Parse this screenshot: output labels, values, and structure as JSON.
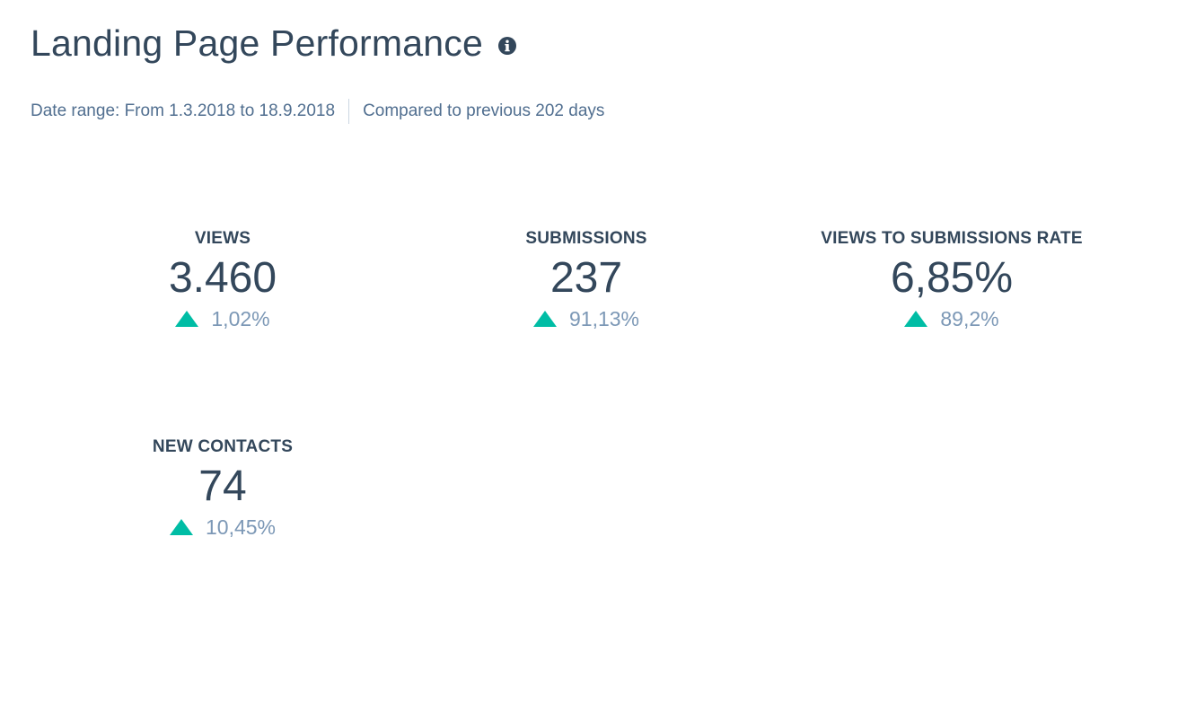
{
  "header": {
    "title": "Landing Page Performance",
    "info_icon": "info-circle-icon"
  },
  "date_range": {
    "range_text": "Date range: From 1.3.2018 to 18.9.2018",
    "comparison_text": "Compared to previous 202 days"
  },
  "colors": {
    "title": "#33475b",
    "subtext": "#516f90",
    "change_text": "#7c98b6",
    "positive_arrow": "#00bda5"
  },
  "kpis": [
    {
      "label": "VIEWS",
      "value": "3.460",
      "change": "1,02%",
      "trend_icon": "arrow-up-icon"
    },
    {
      "label": "SUBMISSIONS",
      "value": "237",
      "change": "91,13%",
      "trend_icon": "arrow-up-icon"
    },
    {
      "label": "VIEWS TO SUBMISSIONS RATE",
      "value": "6,85%",
      "change": "89,2%",
      "trend_icon": "arrow-up-icon"
    },
    {
      "label": "NEW CONTACTS",
      "value": "74",
      "change": "10,45%",
      "trend_icon": "arrow-up-icon"
    }
  ]
}
